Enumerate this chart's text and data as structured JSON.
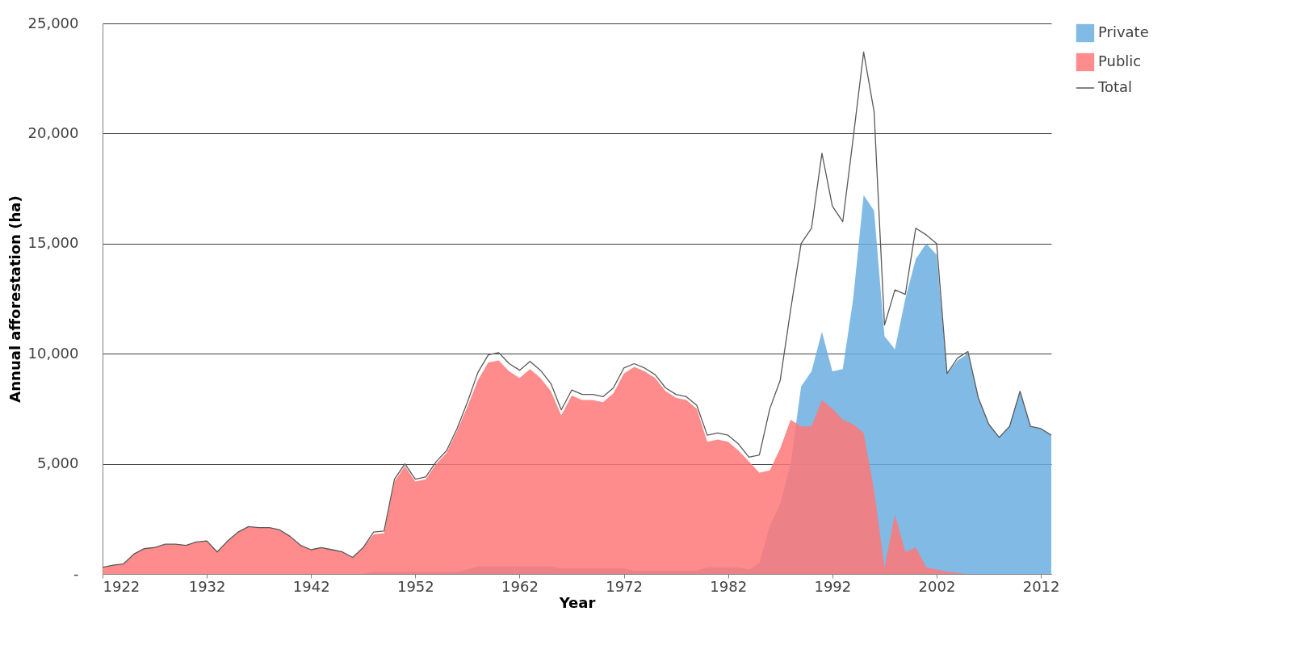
{
  "chart_data": {
    "type": "area",
    "xlabel": "Year",
    "ylabel": "Annual afforestation (ha)",
    "x": [
      1922,
      1923,
      1924,
      1925,
      1926,
      1927,
      1928,
      1929,
      1930,
      1931,
      1932,
      1933,
      1934,
      1935,
      1936,
      1937,
      1938,
      1939,
      1940,
      1941,
      1942,
      1943,
      1944,
      1945,
      1946,
      1947,
      1948,
      1949,
      1950,
      1951,
      1952,
      1953,
      1954,
      1955,
      1956,
      1957,
      1958,
      1959,
      1960,
      1961,
      1962,
      1963,
      1964,
      1965,
      1966,
      1967,
      1968,
      1969,
      1970,
      1971,
      1972,
      1973,
      1974,
      1975,
      1976,
      1977,
      1978,
      1979,
      1980,
      1981,
      1982,
      1983,
      1984,
      1985,
      1986,
      1987,
      1988,
      1989,
      1990,
      1991,
      1992,
      1993,
      1994,
      1995,
      1996,
      1997,
      1998,
      1999,
      2000,
      2001,
      2002,
      2003,
      2004,
      2005,
      2006,
      2007,
      2008,
      2009,
      2010,
      2011,
      2012,
      2013
    ],
    "series": [
      {
        "name": "Private",
        "color": "#6aaee0",
        "values": [
          0,
          0,
          0,
          0,
          0,
          0,
          0,
          0,
          0,
          0,
          0,
          0,
          0,
          0,
          0,
          0,
          0,
          0,
          0,
          0,
          0,
          0,
          0,
          0,
          0,
          0,
          100,
          100,
          100,
          100,
          100,
          100,
          100,
          100,
          100,
          200,
          350,
          350,
          350,
          350,
          350,
          350,
          350,
          350,
          250,
          250,
          250,
          250,
          250,
          250,
          250,
          150,
          150,
          150,
          150,
          150,
          150,
          150,
          300,
          300,
          300,
          300,
          200,
          500,
          2200,
          3200,
          5000,
          8500,
          9200,
          11000,
          9200,
          9300,
          12500,
          17200,
          16500,
          10800,
          10200,
          12500,
          14300,
          15000,
          14500,
          9100,
          9700,
          10000,
          8000,
          6800,
          6200,
          6700,
          8300,
          6700,
          6600,
          6300
        ]
      },
      {
        "name": "Public",
        "color": "#ff7878",
        "values": [
          300,
          400,
          450,
          900,
          1150,
          1200,
          1350,
          1350,
          1300,
          1450,
          1500,
          1000,
          1500,
          1900,
          2150,
          2100,
          2100,
          2000,
          1700,
          1300,
          1100,
          1200,
          1100,
          1000,
          750,
          1200,
          1800,
          1850,
          4200,
          4900,
          4200,
          4300,
          5000,
          5500,
          6500,
          7600,
          8800,
          9600,
          9700,
          9200,
          8900,
          9300,
          8900,
          8300,
          7200,
          8100,
          7900,
          7900,
          7800,
          8200,
          9100,
          9400,
          9200,
          8900,
          8300,
          8000,
          7900,
          7500,
          6000,
          6100,
          6000,
          5600,
          5100,
          4600,
          4700,
          5700,
          7000,
          6700,
          6700,
          7900,
          7500,
          7000,
          6800,
          6400,
          3800,
          300,
          2700,
          1000,
          1200,
          300,
          200,
          100,
          50,
          0,
          0,
          0,
          0,
          0,
          0,
          0,
          0,
          0
        ]
      },
      {
        "name": "Total",
        "type": "line",
        "color": "#595959",
        "values": [
          300,
          400,
          450,
          900,
          1150,
          1200,
          1350,
          1350,
          1300,
          1450,
          1500,
          1000,
          1500,
          1900,
          2150,
          2100,
          2100,
          2000,
          1700,
          1300,
          1100,
          1200,
          1100,
          1000,
          750,
          1200,
          1900,
          1950,
          4300,
          5000,
          4300,
          4400,
          5100,
          5600,
          6600,
          7800,
          9150,
          9950,
          10050,
          9550,
          9250,
          9650,
          9250,
          8650,
          7450,
          8350,
          8150,
          8150,
          8050,
          8450,
          9350,
          9550,
          9350,
          9050,
          8450,
          8150,
          8050,
          7650,
          6300,
          6400,
          6300,
          5900,
          5300,
          5400,
          7500,
          8800,
          12000,
          15000,
          15700,
          19100,
          16700,
          16000,
          19800,
          23700,
          21000,
          11300,
          12900,
          12700,
          15700,
          15400,
          15000,
          9100,
          9800,
          10100,
          8000,
          6800,
          6200,
          6700,
          8300,
          6700,
          6600,
          6300
        ]
      }
    ],
    "xlim": [
      1922,
      2013
    ],
    "xticks": [
      1922,
      1932,
      1942,
      1952,
      1962,
      1972,
      1982,
      1992,
      2002,
      2012
    ],
    "ylim": [
      0,
      25000
    ],
    "yticks": [
      {
        "value": 0,
        "label": "-"
      },
      {
        "value": 5000,
        "label": "5,000"
      },
      {
        "value": 10000,
        "label": "10,000"
      },
      {
        "value": 15000,
        "label": "15,000"
      },
      {
        "value": 20000,
        "label": "20,000"
      },
      {
        "value": 25000,
        "label": "25,000"
      }
    ],
    "grid": "y",
    "legend": "right"
  }
}
